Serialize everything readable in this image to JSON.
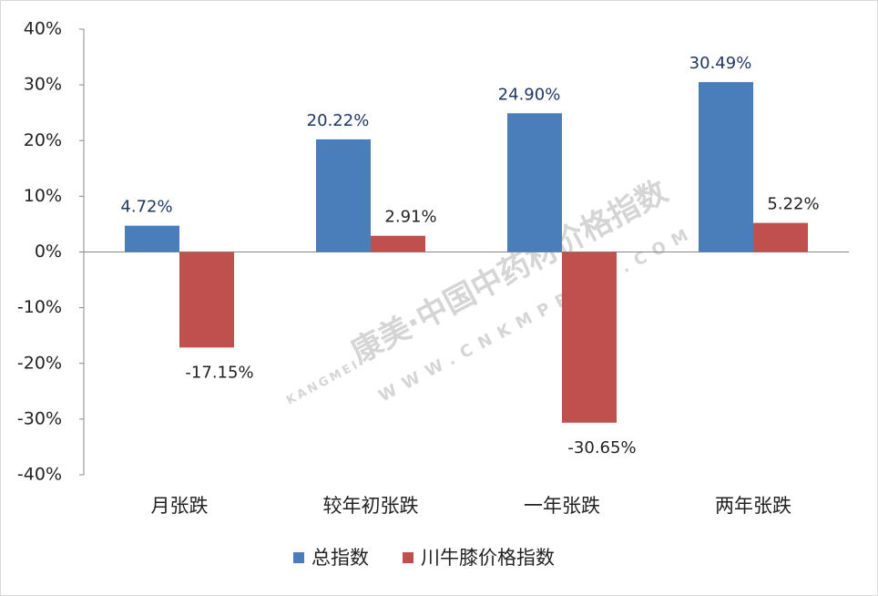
{
  "chart_data": {
    "type": "bar",
    "categories": [
      "月张跌",
      "较年初张跌",
      "一年张跌",
      "两年张跌"
    ],
    "series": [
      {
        "name": "总指数",
        "color": "#4a7ebb",
        "values": [
          4.72,
          20.22,
          24.9,
          30.49
        ],
        "value_labels": [
          "4.72%",
          "20.22%",
          "24.90%",
          "30.49%"
        ]
      },
      {
        "name": "川牛膝价格指数",
        "color": "#c0504d",
        "values": [
          -17.15,
          2.91,
          -30.65,
          5.22
        ],
        "value_labels": [
          "-17.15%",
          "2.91%",
          "-30.65%",
          "5.22%"
        ]
      }
    ],
    "ylim": [
      -40,
      40
    ],
    "yticks": [
      {
        "value": -40,
        "label": "-40%"
      },
      {
        "value": -30,
        "label": "-30%"
      },
      {
        "value": -20,
        "label": "-20%"
      },
      {
        "value": -10,
        "label": "-10%"
      },
      {
        "value": 0,
        "label": "0%"
      },
      {
        "value": 10,
        "label": "10%"
      },
      {
        "value": 20,
        "label": "20%"
      },
      {
        "value": 30,
        "label": "30%"
      },
      {
        "value": 40,
        "label": "40%"
      }
    ],
    "grid": false,
    "legend": "bottom",
    "watermark": [
      "康美·中国中药材价格指数",
      "WWW.CNKMPRICE.COM",
      "KANGMEI"
    ]
  }
}
